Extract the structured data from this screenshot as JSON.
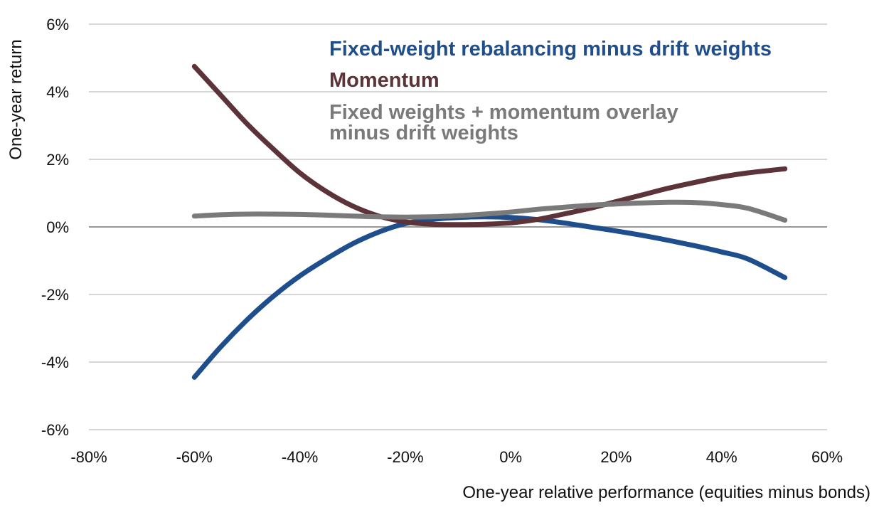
{
  "chart_data": {
    "type": "line",
    "title": "",
    "xlabel": "One-year relative performance (equities minus bonds)",
    "ylabel": "One-year return",
    "xlim": [
      -80,
      60
    ],
    "ylim": [
      -6,
      6
    ],
    "x_ticks": [
      -80,
      -60,
      -40,
      -20,
      0,
      20,
      40,
      60
    ],
    "y_ticks": [
      6,
      4,
      2,
      0,
      -2,
      -4,
      -6
    ],
    "x_tick_labels": [
      "-80%",
      "-60%",
      "-40%",
      "-20%",
      "0%",
      "20%",
      "40%",
      "60%"
    ],
    "y_tick_labels": [
      "6%",
      "4%",
      "2%",
      "0%",
      "-2%",
      "-4%",
      "-6%"
    ],
    "grid": true,
    "legend_position": "top-right",
    "series": [
      {
        "name": "Fixed-weight rebalancing minus drift weights",
        "color": "#1f4e8c",
        "x": [
          -60,
          -55,
          -50,
          -45,
          -40,
          -35,
          -30,
          -25,
          -20,
          -15,
          -10,
          -5,
          0,
          5,
          10,
          15,
          20,
          25,
          30,
          35,
          40,
          45,
          52
        ],
        "y": [
          -4.45,
          -3.55,
          -2.75,
          -2.05,
          -1.45,
          -0.95,
          -0.5,
          -0.15,
          0.1,
          0.22,
          0.28,
          0.3,
          0.28,
          0.22,
          0.12,
          0.0,
          -0.12,
          -0.25,
          -0.4,
          -0.56,
          -0.74,
          -0.95,
          -1.5
        ]
      },
      {
        "name": "Momentum",
        "color": "#5c3338",
        "x": [
          -60,
          -55,
          -50,
          -45,
          -40,
          -35,
          -30,
          -25,
          -20,
          -15,
          -10,
          -5,
          0,
          5,
          10,
          15,
          20,
          25,
          30,
          35,
          40,
          45,
          52
        ],
        "y": [
          4.75,
          3.9,
          3.05,
          2.3,
          1.6,
          1.05,
          0.62,
          0.32,
          0.15,
          0.08,
          0.07,
          0.08,
          0.12,
          0.22,
          0.38,
          0.55,
          0.75,
          0.95,
          1.15,
          1.32,
          1.48,
          1.6,
          1.72
        ]
      },
      {
        "name": "Fixed weights + momentum overlay minus drift weights",
        "color": "#7a7a7a",
        "x": [
          -60,
          -55,
          -50,
          -45,
          -40,
          -35,
          -30,
          -25,
          -20,
          -15,
          -10,
          -5,
          0,
          5,
          10,
          15,
          20,
          25,
          30,
          35,
          40,
          45,
          52
        ],
        "y": [
          0.32,
          0.36,
          0.38,
          0.38,
          0.37,
          0.35,
          0.32,
          0.3,
          0.29,
          0.3,
          0.33,
          0.38,
          0.44,
          0.52,
          0.58,
          0.64,
          0.68,
          0.71,
          0.73,
          0.72,
          0.66,
          0.55,
          0.2
        ]
      }
    ],
    "legend_lines": [
      [
        "Fixed-weight rebalancing minus drift weights"
      ],
      [
        "Momentum"
      ],
      [
        "Fixed weights + momentum overlay",
        "minus drift weights"
      ]
    ]
  }
}
